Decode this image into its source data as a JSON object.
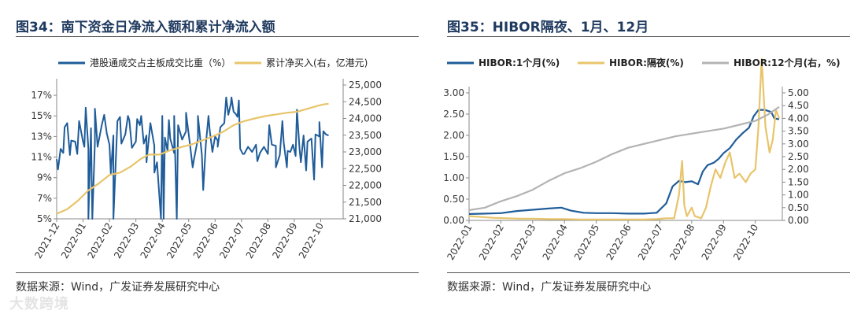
{
  "charts": {
    "left": {
      "title": "图34：南下资金日净流入额和累计净流入额",
      "source": "数据来源：Wind，广发证券发展研究中心"
    },
    "right": {
      "title": "图35：HIBOR隔夜、1月、12月",
      "source": "数据来源：Wind，广发证券发展研究中心"
    }
  },
  "watermark": "大数跨境",
  "colors": {
    "blue": "#1f5c99",
    "gold": "#e8c46a",
    "gray": "#b3b3b3"
  },
  "chart_data": [
    {
      "type": "line",
      "grid": false,
      "legend": "top",
      "xlabels": [
        "2021-12",
        "2022-01",
        "2022-02",
        "2022-03",
        "2022-04",
        "2022-05",
        "2022-06",
        "2022-07",
        "2022-08",
        "2022-09",
        "2022-10"
      ],
      "y_left": {
        "ticks": [
          "5%",
          "7%",
          "9%",
          "11%",
          "13%",
          "15%",
          "17%"
        ],
        "range": [
          5,
          18
        ]
      },
      "y_right": {
        "ticks": [
          "21,000",
          "21,500",
          "22,000",
          "22,500",
          "23,000",
          "23,500",
          "24,000",
          "24,500",
          "25,000"
        ],
        "range": [
          21000,
          25000
        ]
      },
      "series": [
        {
          "name": "港股通成交占主板成交比重（%）",
          "axis": "left",
          "color": "#1f5c99",
          "points": [
            [
              0.0,
              10.8
            ],
            [
              0.15,
              11.8
            ],
            [
              0.3,
              13.9
            ],
            [
              0.4,
              14.3
            ],
            [
              0.55,
              12.6
            ],
            [
              0.7,
              12.5
            ],
            [
              0.85,
              14.5
            ],
            [
              1.0,
              12.5
            ],
            [
              1.1,
              15.8
            ],
            [
              1.2,
              11.8
            ],
            [
              1.3,
              13.8
            ],
            [
              1.45,
              12.5
            ],
            [
              1.55,
              12.0
            ],
            [
              1.7,
              14.0
            ],
            [
              1.8,
              15.1
            ],
            [
              1.9,
              13.3
            ],
            [
              2.0,
              12.2
            ],
            [
              2.15,
              13.1
            ],
            [
              2.3,
              14.5
            ],
            [
              2.45,
              12.3
            ],
            [
              2.6,
              13.2
            ],
            [
              2.75,
              14.6
            ],
            [
              2.85,
              11.9
            ],
            [
              3.0,
              12.5
            ],
            [
              3.15,
              14.1
            ],
            [
              3.3,
              12.3
            ],
            [
              3.4,
              13.1
            ],
            [
              3.55,
              14.3
            ],
            [
              3.7,
              12.1
            ],
            [
              3.8,
              10.5
            ],
            [
              4.0,
              15.0
            ],
            [
              4.1,
              12.9
            ],
            [
              4.2,
              11.6
            ],
            [
              4.3,
              12.8
            ],
            [
              4.45,
              11.4
            ],
            [
              4.6,
              14.1
            ],
            [
              4.75,
              12.7
            ],
            [
              4.9,
              13.5
            ],
            [
              5.05,
              12.2
            ],
            [
              5.2,
              10.8
            ],
            [
              5.35,
              12.8
            ],
            [
              5.5,
              11.2
            ],
            [
              5.65,
              12.2
            ],
            [
              5.8,
              13.5
            ],
            [
              5.9,
              11.5
            ],
            [
              6.0,
              13.0
            ],
            [
              6.1,
              12.6
            ],
            [
              6.2,
              13.9
            ],
            [
              6.35,
              14.3
            ],
            [
              6.5,
              15.1
            ],
            [
              6.6,
              16.2
            ],
            [
              6.7,
              15.4
            ],
            [
              6.78,
              15.2
            ],
            [
              6.85,
              14.9
            ],
            [
              6.95,
              11.8
            ],
            [
              7.1,
              11.3
            ],
            [
              7.25,
              12.0
            ],
            [
              7.4,
              11.5
            ],
            [
              7.55,
              12.2
            ],
            [
              7.7,
              11.4
            ],
            [
              7.85,
              12.0
            ],
            [
              8.0,
              11.3
            ],
            [
              8.15,
              12.2
            ],
            [
              8.3,
              12.1
            ],
            [
              8.45,
              11.2
            ],
            [
              8.6,
              12.4
            ],
            [
              8.75,
              11.6
            ],
            [
              8.85,
              11.5
            ],
            [
              8.95,
              12.2
            ],
            [
              9.05,
              11.1
            ],
            [
              9.2,
              11.8
            ],
            [
              9.35,
              13.1
            ],
            [
              9.5,
              12.5
            ],
            [
              9.65,
              12.8
            ],
            [
              9.8,
              13.2
            ],
            [
              9.95,
              13.0
            ],
            [
              10.1,
              13.5
            ],
            [
              10.2,
              13.2
            ],
            [
              10.3,
              13.1
            ]
          ],
          "spikes": [
            [
              0.05,
              9.8
            ],
            [
              0.25,
              11.4
            ],
            [
              0.5,
              11.2
            ],
            [
              0.78,
              11.3
            ],
            [
              1.05,
              12.0
            ],
            [
              1.2,
              5.0
            ],
            [
              1.35,
              5.0
            ],
            [
              1.45,
              15.7
            ],
            [
              2.05,
              9.4
            ],
            [
              2.15,
              5.0
            ],
            [
              2.4,
              14.9
            ],
            [
              2.7,
              15.0
            ],
            [
              3.05,
              14.7
            ],
            [
              3.2,
              15.0
            ],
            [
              3.4,
              10.5
            ],
            [
              3.7,
              9.5
            ],
            [
              3.95,
              5.0
            ],
            [
              4.05,
              5.0
            ],
            [
              4.25,
              14.6
            ],
            [
              4.45,
              15.0
            ],
            [
              4.55,
              5.0
            ],
            [
              4.9,
              15.3
            ],
            [
              5.15,
              10.0
            ],
            [
              5.35,
              15.0
            ],
            [
              5.55,
              7.8
            ],
            [
              5.75,
              15.0
            ],
            [
              6.1,
              12.0
            ],
            [
              6.42,
              16.8
            ],
            [
              6.62,
              16.8
            ],
            [
              6.9,
              16.5
            ],
            [
              7.05,
              11.3
            ],
            [
              7.6,
              10.6
            ],
            [
              8.05,
              14.1
            ],
            [
              8.3,
              10.0
            ],
            [
              8.55,
              14.5
            ],
            [
              8.72,
              10.0
            ],
            [
              9.1,
              15.6
            ],
            [
              9.25,
              10.5
            ],
            [
              9.45,
              9.7
            ],
            [
              9.75,
              8.8
            ],
            [
              9.95,
              14.4
            ],
            [
              10.05,
              10.0
            ]
          ]
        },
        {
          "name": "累计净买入(右，亿港元)",
          "axis": "right",
          "color": "#e8c46a",
          "points": [
            [
              0.0,
              21150
            ],
            [
              0.4,
              21290
            ],
            [
              0.8,
              21540
            ],
            [
              1.2,
              21850
            ],
            [
              1.6,
              22060
            ],
            [
              2.0,
              22310
            ],
            [
              2.4,
              22380
            ],
            [
              2.8,
              22560
            ],
            [
              3.2,
              22800
            ],
            [
              3.5,
              22920
            ],
            [
              3.9,
              22920
            ],
            [
              4.3,
              23050
            ],
            [
              4.7,
              23140
            ],
            [
              5.1,
              23220
            ],
            [
              5.5,
              23340
            ],
            [
              5.9,
              23460
            ],
            [
              6.3,
              23600
            ],
            [
              6.7,
              23800
            ],
            [
              7.1,
              23920
            ],
            [
              7.5,
              24000
            ],
            [
              7.9,
              24070
            ],
            [
              8.3,
              24120
            ],
            [
              8.7,
              24170
            ],
            [
              9.1,
              24200
            ],
            [
              9.5,
              24290
            ],
            [
              9.9,
              24380
            ],
            [
              10.1,
              24420
            ],
            [
              10.3,
              24440
            ]
          ]
        }
      ]
    },
    {
      "type": "line",
      "grid": false,
      "legend": "top",
      "xlabels": [
        "2022-01",
        "2022-02",
        "2022-03",
        "2022-04",
        "2022-05",
        "2022-06",
        "2022-07",
        "2022-08",
        "2022-09",
        "2022-10"
      ],
      "y_left": {
        "ticks": [
          "0.00",
          "0.50",
          "1.00",
          "1.50",
          "2.00",
          "2.50",
          "3.00"
        ],
        "range": [
          0,
          3.0
        ]
      },
      "y_right": {
        "ticks": [
          "0.00",
          "0.50",
          "1.00",
          "1.50",
          "2.00",
          "2.50",
          "3.00",
          "3.50",
          "4.00",
          "4.50",
          "5.00"
        ],
        "range": [
          0,
          5.0
        ]
      },
      "series": [
        {
          "name": "HIBOR:1个月(%)",
          "axis": "left",
          "color": "#1f5c99",
          "points": [
            [
              0.0,
              0.15
            ],
            [
              0.5,
              0.16
            ],
            [
              1.0,
              0.17
            ],
            [
              1.5,
              0.22
            ],
            [
              2.0,
              0.25
            ],
            [
              2.5,
              0.28
            ],
            [
              2.9,
              0.3
            ],
            [
              3.2,
              0.23
            ],
            [
              3.6,
              0.18
            ],
            [
              4.0,
              0.17
            ],
            [
              4.5,
              0.17
            ],
            [
              5.0,
              0.16
            ],
            [
              5.5,
              0.16
            ],
            [
              5.9,
              0.18
            ],
            [
              6.2,
              0.4
            ],
            [
              6.4,
              0.8
            ],
            [
              6.6,
              0.93
            ],
            [
              6.8,
              0.9
            ],
            [
              7.0,
              0.92
            ],
            [
              7.2,
              0.85
            ],
            [
              7.35,
              1.15
            ],
            [
              7.5,
              1.3
            ],
            [
              7.7,
              1.36
            ],
            [
              7.85,
              1.45
            ],
            [
              8.0,
              1.58
            ],
            [
              8.2,
              1.7
            ],
            [
              8.4,
              1.9
            ],
            [
              8.6,
              2.05
            ],
            [
              8.8,
              2.18
            ],
            [
              8.95,
              2.45
            ],
            [
              9.1,
              2.6
            ],
            [
              9.3,
              2.6
            ],
            [
              9.5,
              2.55
            ],
            [
              9.6,
              2.4
            ],
            [
              9.75,
              2.38
            ]
          ]
        },
        {
          "name": "HIBOR:隔夜(%)",
          "axis": "left",
          "color": "#e8c46a",
          "points": [
            [
              0.0,
              0.1
            ],
            [
              0.4,
              0.08
            ],
            [
              0.8,
              0.06
            ],
            [
              1.2,
              0.05
            ],
            [
              1.6,
              0.04
            ],
            [
              2.0,
              0.04
            ],
            [
              2.5,
              0.03
            ],
            [
              3.0,
              0.03
            ],
            [
              3.5,
              0.02
            ],
            [
              4.0,
              0.02
            ],
            [
              4.5,
              0.02
            ],
            [
              5.0,
              0.02
            ],
            [
              5.5,
              0.02
            ],
            [
              5.9,
              0.03
            ],
            [
              6.2,
              0.05
            ],
            [
              6.45,
              0.05
            ],
            [
              6.6,
              0.6
            ],
            [
              6.7,
              1.4
            ],
            [
              6.77,
              0.35
            ],
            [
              6.85,
              0.1
            ],
            [
              7.0,
              0.3
            ],
            [
              7.1,
              0.1
            ],
            [
              7.3,
              0.05
            ],
            [
              7.45,
              0.3
            ],
            [
              7.6,
              0.8
            ],
            [
              7.75,
              1.2
            ],
            [
              7.9,
              1.0
            ],
            [
              8.05,
              1.35
            ],
            [
              8.2,
              1.6
            ],
            [
              8.35,
              1.0
            ],
            [
              8.5,
              1.1
            ],
            [
              8.7,
              0.9
            ],
            [
              8.85,
              1.1
            ],
            [
              9.0,
              1.2
            ],
            [
              9.1,
              2.2
            ],
            [
              9.2,
              3.8
            ],
            [
              9.32,
              2.2
            ],
            [
              9.45,
              1.6
            ],
            [
              9.55,
              1.9
            ],
            [
              9.65,
              2.6
            ],
            [
              9.75,
              2.4
            ]
          ]
        },
        {
          "name": "HIBOR:12个月(右，%)",
          "axis": "right",
          "color": "#b3b3b3",
          "points": [
            [
              0.0,
              0.4
            ],
            [
              0.5,
              0.5
            ],
            [
              1.0,
              0.75
            ],
            [
              1.5,
              0.95
            ],
            [
              2.0,
              1.2
            ],
            [
              2.5,
              1.55
            ],
            [
              3.0,
              1.85
            ],
            [
              3.5,
              2.05
            ],
            [
              4.0,
              2.3
            ],
            [
              4.5,
              2.6
            ],
            [
              5.0,
              2.85
            ],
            [
              5.5,
              3.0
            ],
            [
              6.0,
              3.15
            ],
            [
              6.5,
              3.3
            ],
            [
              7.0,
              3.4
            ],
            [
              7.5,
              3.5
            ],
            [
              8.0,
              3.6
            ],
            [
              8.5,
              3.75
            ],
            [
              9.0,
              3.9
            ],
            [
              9.4,
              4.15
            ],
            [
              9.75,
              4.45
            ]
          ]
        }
      ]
    }
  ]
}
